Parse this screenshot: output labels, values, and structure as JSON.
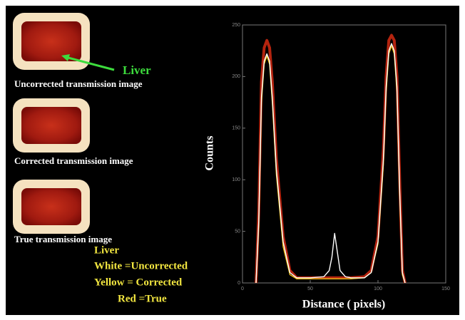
{
  "panels": [
    {
      "caption": "Uncorrected transmission image"
    },
    {
      "caption": "Corrected transmission image"
    },
    {
      "caption": "True transmission image"
    }
  ],
  "annotation": "Liver",
  "chart_data": {
    "type": "line",
    "x_label": "Distance ( pixels)",
    "y_label": "Counts",
    "legend_title": "Liver",
    "x": [
      10,
      12,
      14,
      16,
      18,
      20,
      22,
      25,
      30,
      35,
      40,
      50,
      60,
      64,
      66,
      68,
      70,
      72,
      76,
      80,
      90,
      95,
      100,
      104,
      106,
      108,
      110,
      112,
      114,
      116,
      118,
      120
    ],
    "series": [
      {
        "name": "Red =True",
        "color": "#d42a12",
        "values": [
          0,
          70,
          195,
          228,
          235,
          228,
          195,
          120,
          45,
          12,
          5,
          5,
          5,
          5,
          5,
          5,
          5,
          5,
          5,
          5,
          6,
          12,
          45,
          130,
          200,
          235,
          240,
          235,
          200,
          100,
          12,
          0
        ]
      },
      {
        "name": "Yellow = Corrected",
        "color": "#f2c21a",
        "values": [
          0,
          55,
          175,
          212,
          220,
          212,
          175,
          105,
          35,
          8,
          4,
          4,
          4,
          4,
          4,
          4,
          4,
          4,
          4,
          4,
          5,
          10,
          38,
          115,
          185,
          222,
          230,
          222,
          185,
          85,
          8,
          0
        ]
      },
      {
        "name": "White =Uncorrected",
        "color": "#ffffff",
        "values": [
          0,
          60,
          180,
          215,
          222,
          215,
          180,
          110,
          40,
          10,
          5,
          5,
          6,
          12,
          25,
          48,
          30,
          12,
          6,
          5,
          5,
          10,
          40,
          120,
          190,
          225,
          232,
          225,
          190,
          90,
          10,
          0
        ]
      }
    ],
    "xlim": [
      0,
      150
    ],
    "xticks": [
      0,
      50,
      100,
      150
    ],
    "ylim": [
      0,
      250
    ],
    "yticks": [
      0,
      50,
      100,
      150,
      200,
      250
    ]
  }
}
